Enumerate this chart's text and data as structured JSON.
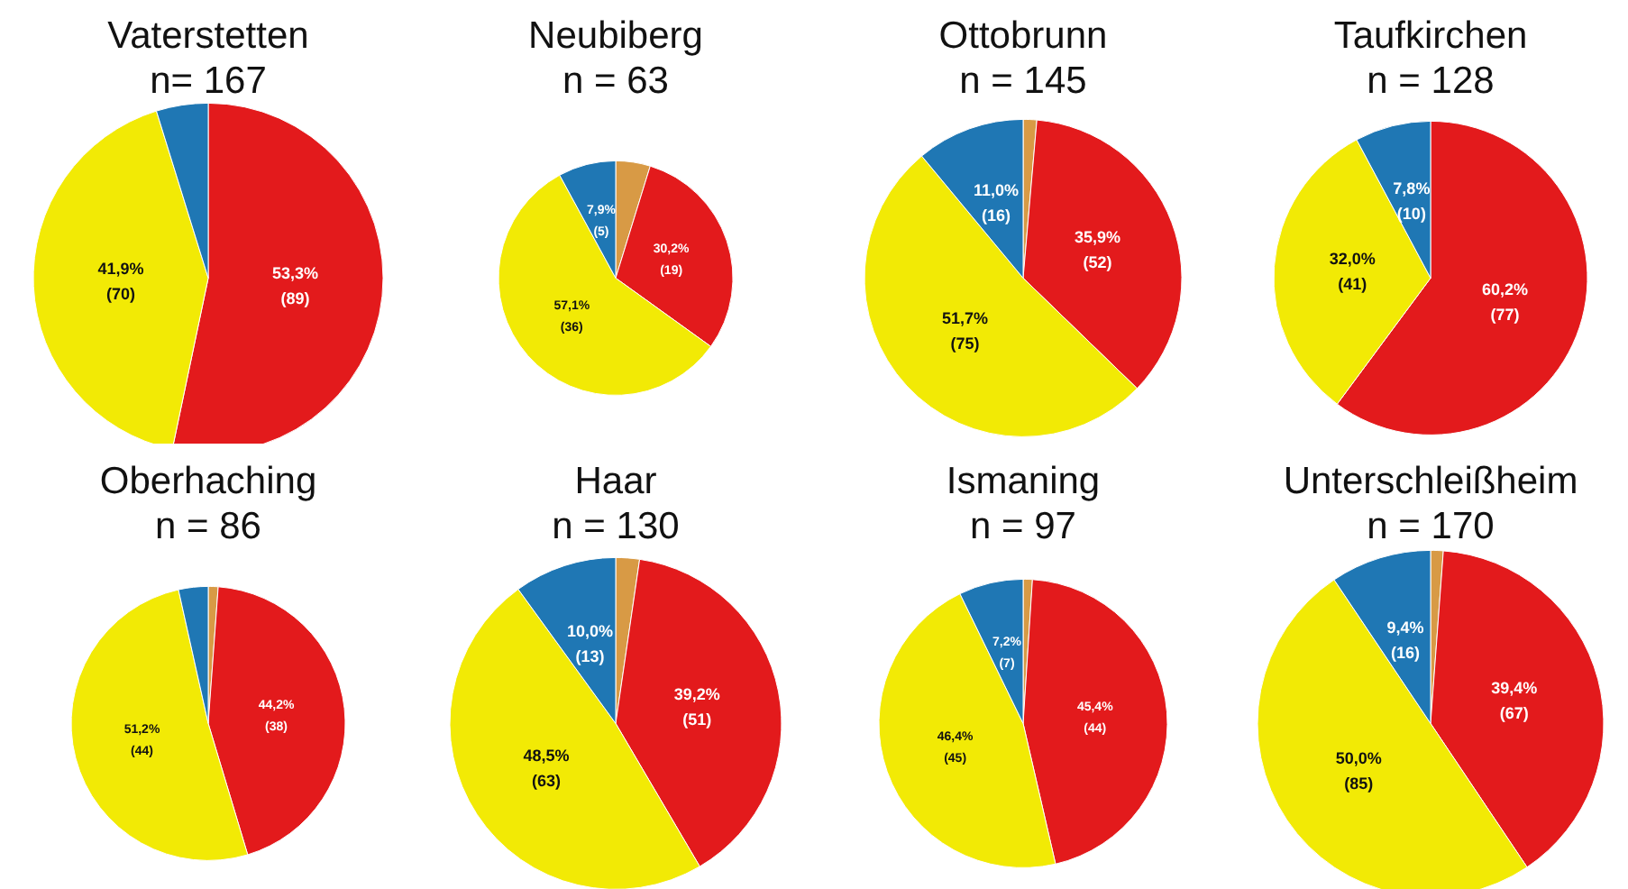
{
  "chart_data": [
    {
      "type": "pie",
      "title": "Vaterstetten",
      "subtitle": "n= 167",
      "categories": [
        null,
        null,
        null
      ],
      "values": [
        89,
        70,
        8
      ],
      "colors": [
        "#e31a1c",
        "#f2ea05",
        "#1f77b4"
      ],
      "value_labels": [
        "53,3%\n(89)",
        "41,9%\n(70)",
        null
      ]
    },
    {
      "type": "pie",
      "title": "Neubiberg",
      "subtitle": "n = 63",
      "categories": [
        null,
        null,
        null,
        null
      ],
      "values": [
        3,
        19,
        36,
        5
      ],
      "colors": [
        "#d89a45",
        "#e31a1c",
        "#f2ea05",
        "#1f77b4"
      ],
      "value_labels": [
        null,
        "30,2%\n(19)",
        "57,1%\n(36)",
        "7,9%\n(5)"
      ]
    },
    {
      "type": "pie",
      "title": "Ottobrunn",
      "subtitle": "n = 145",
      "categories": [
        null,
        null,
        null,
        null
      ],
      "values": [
        2,
        52,
        75,
        16
      ],
      "colors": [
        "#d89a45",
        "#e31a1c",
        "#f2ea05",
        "#1f77b4"
      ],
      "value_labels": [
        null,
        "35,9%\n(52)",
        "51,7%\n(75)",
        "11,0%\n(16)"
      ]
    },
    {
      "type": "pie",
      "title": "Taufkirchen",
      "subtitle": "n = 128",
      "categories": [
        null,
        null,
        null
      ],
      "values": [
        77,
        41,
        10
      ],
      "colors": [
        "#e31a1c",
        "#f2ea05",
        "#1f77b4"
      ],
      "value_labels": [
        "60,2%\n(77)",
        "32,0%\n(41)",
        "7,8%\n(10)"
      ]
    },
    {
      "type": "pie",
      "title": "Oberhaching",
      "subtitle": "n = 86",
      "categories": [
        null,
        null,
        null,
        null
      ],
      "values": [
        1,
        38,
        44,
        3
      ],
      "colors": [
        "#d89a45",
        "#e31a1c",
        "#f2ea05",
        "#1f77b4"
      ],
      "value_labels": [
        null,
        "44,2%\n(38)",
        "51,2%\n(44)",
        null
      ]
    },
    {
      "type": "pie",
      "title": "Haar",
      "subtitle": "n = 130",
      "categories": [
        null,
        null,
        null,
        null
      ],
      "values": [
        3,
        51,
        63,
        13
      ],
      "colors": [
        "#d89a45",
        "#e31a1c",
        "#f2ea05",
        "#1f77b4"
      ],
      "value_labels": [
        null,
        "39,2%\n(51)",
        "48,5%\n(63)",
        "10,0%\n(13)"
      ]
    },
    {
      "type": "pie",
      "title": "Ismaning",
      "subtitle": "n = 97",
      "categories": [
        null,
        null,
        null,
        null
      ],
      "values": [
        1,
        44,
        45,
        7
      ],
      "colors": [
        "#d89a45",
        "#e31a1c",
        "#f2ea05",
        "#1f77b4"
      ],
      "value_labels": [
        null,
        "45,4%\n(44)",
        "46,4%\n(45)",
        "7,2%\n(7)"
      ]
    },
    {
      "type": "pie",
      "title": "Unterschleißheim",
      "subtitle": "n = 170",
      "categories": [
        null,
        null,
        null,
        null
      ],
      "values": [
        2,
        67,
        85,
        16
      ],
      "colors": [
        "#d89a45",
        "#e31a1c",
        "#f2ea05",
        "#1f77b4"
      ],
      "value_labels": [
        null,
        "39,4%\n(67)",
        "50,0%\n(85)",
        "9,4%\n(16)"
      ]
    }
  ]
}
